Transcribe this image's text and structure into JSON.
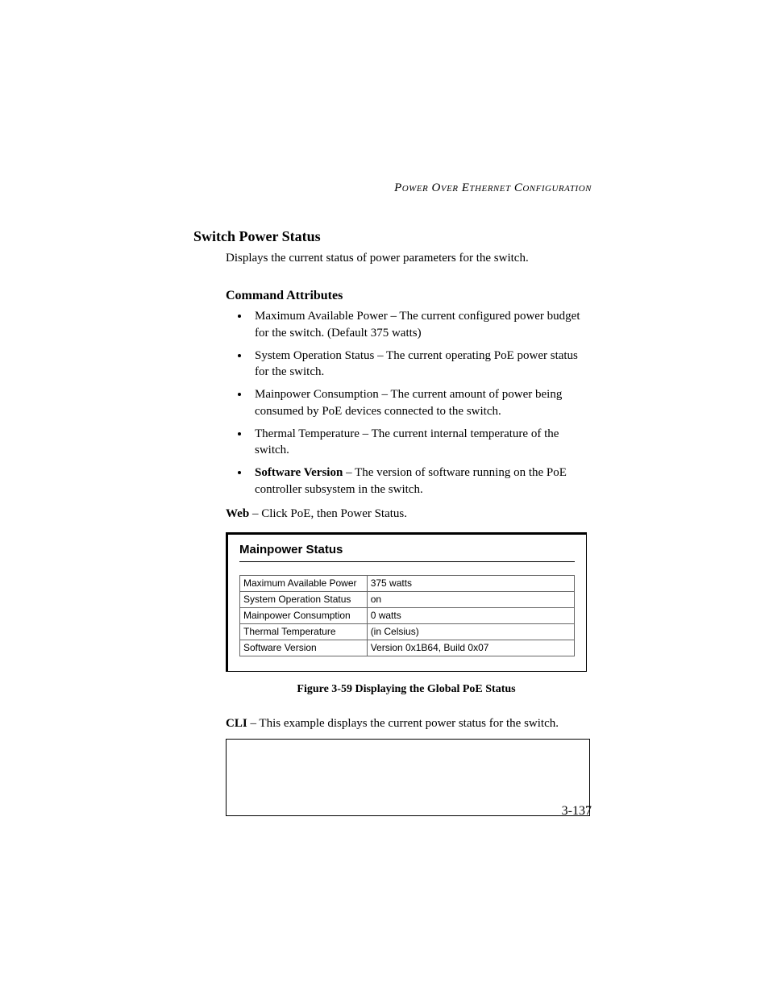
{
  "header": {
    "running": "Power Over Ethernet Configuration"
  },
  "section": {
    "title": "Switch Power Status",
    "intro": "Displays the current status of power parameters for the switch.",
    "attributes_heading": "Command Attributes",
    "attributes": [
      {
        "text": "Maximum Available Power – The current configured power budget for the switch. (Default 375 watts)"
      },
      {
        "text": "System Operation Status – The current operating PoE power status for the switch."
      },
      {
        "text": "Mainpower Consumption – The current amount of power being consumed by PoE devices connected to the switch."
      },
      {
        "text": "Thermal Temperature – The current internal temperature of the switch."
      },
      {
        "bold": "Software Version",
        "rest": " – The version of software running on the PoE controller subsystem in the switch."
      }
    ],
    "web_label": "Web",
    "web_text": " – Click PoE, then Power Status.",
    "cli_label": "CLI",
    "cli_text": " – This example displays the current power status for the switch."
  },
  "screenshot": {
    "title": "Mainpower Status",
    "rows": [
      {
        "label": "Maximum Available Power",
        "value": "375 watts"
      },
      {
        "label": "System Operation Status",
        "value": "on"
      },
      {
        "label": "Mainpower Consumption",
        "value": "0 watts"
      },
      {
        "label": "Thermal Temperature",
        "value": "(in Celsius)"
      },
      {
        "label": "Software Version",
        "value": "Version 0x1B64, Build 0x07"
      }
    ],
    "table_font_family": "Arial, Helvetica, sans-serif",
    "border_color": "#666666"
  },
  "figure": {
    "caption": "Figure 3-59  Displaying the Global PoE Status"
  },
  "page_number": "3-137"
}
